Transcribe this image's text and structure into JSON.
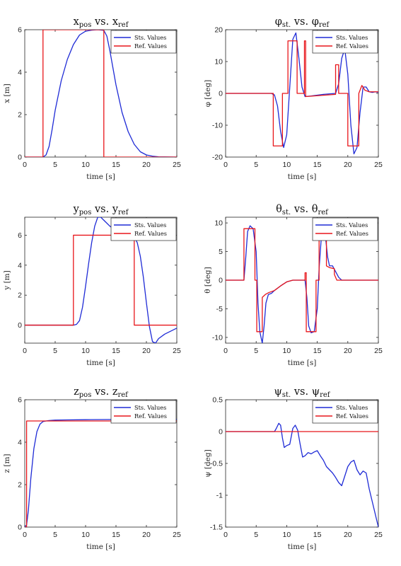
{
  "colors": {
    "states": "#1f2bd6",
    "reference": "#e8161b"
  },
  "chart_data": [
    {
      "type": "line",
      "title": "x_pos vs. x_ref",
      "title_main_1": "x",
      "title_sub_1": "pos",
      "title_join": " vs. ",
      "title_main_2": "x",
      "title_sub_2": "ref",
      "xlabel": "time [s]",
      "ylabel": "x [m]",
      "xlim": [
        0,
        25
      ],
      "ylim": [
        0,
        6
      ],
      "xticks": [
        0,
        5,
        10,
        15,
        20,
        25
      ],
      "yticks": [
        0,
        2,
        4,
        6
      ],
      "legend_position": "top-right",
      "series": [
        {
          "name": "Sts. Values",
          "color": "#1f2bd6",
          "x": [
            0,
            3,
            3.5,
            4,
            4.5,
            5,
            6,
            7,
            8,
            9,
            10,
            11,
            12,
            13,
            13.5,
            14,
            15,
            16,
            17,
            18,
            19,
            20,
            21,
            22,
            25
          ],
          "y": [
            0,
            0,
            0.1,
            0.5,
            1.3,
            2.2,
            3.6,
            4.6,
            5.3,
            5.75,
            5.93,
            5.98,
            6,
            5.97,
            5.7,
            5.0,
            3.4,
            2.1,
            1.2,
            0.6,
            0.25,
            0.1,
            0.04,
            0.01,
            0
          ]
        },
        {
          "name": "Ref. Values",
          "color": "#e8161b",
          "x": [
            0,
            3,
            3,
            13,
            13,
            25
          ],
          "y": [
            0,
            0,
            6,
            6,
            0,
            0
          ]
        }
      ]
    },
    {
      "type": "line",
      "title": "φ_st. vs. φ_ref",
      "title_main_1": "φ",
      "title_sub_1": "st.",
      "title_join": " vs. ",
      "title_main_2": "φ",
      "title_sub_2": "ref",
      "xlabel": "time [s]",
      "ylabel": "φ [deg]",
      "xlim": [
        0,
        25
      ],
      "ylim": [
        -20,
        20
      ],
      "xticks": [
        0,
        5,
        10,
        15,
        20,
        25
      ],
      "yticks": [
        -20,
        -10,
        0,
        10,
        20
      ],
      "legend_position": "top-right",
      "series": [
        {
          "name": "Sts. Values",
          "color": "#1f2bd6",
          "x": [
            0,
            7.5,
            8,
            8.5,
            9,
            9.5,
            10,
            10.5,
            11,
            11.5,
            12,
            12.5,
            13,
            14,
            16,
            18,
            18.5,
            19,
            19.5,
            20,
            20.5,
            21,
            21.5,
            22,
            22.5,
            23,
            23.5,
            24,
            24.5,
            25
          ],
          "y": [
            0,
            0,
            -0.5,
            -4,
            -12,
            -17,
            -13,
            2,
            17,
            19,
            11,
            2,
            -1,
            -0.8,
            -0.3,
            0,
            3,
            11,
            14,
            6,
            -10,
            -19,
            -17,
            -6,
            2,
            2,
            0.5,
            0.3,
            0.5,
            0.3
          ]
        },
        {
          "name": "Ref. Values",
          "color": "#e8161b",
          "x": [
            0,
            7.8,
            7.8,
            9.3,
            9.3,
            10.2,
            10.2,
            11.7,
            11.7,
            12.9,
            12.9,
            13.1,
            13.1,
            18,
            18,
            18.5,
            18.5,
            20,
            20,
            21.8,
            21.8,
            22.3,
            22.8,
            23.5,
            25
          ],
          "y": [
            0,
            0,
            -16.5,
            -16.5,
            0,
            0,
            16.5,
            16.5,
            0,
            0,
            16.5,
            16.5,
            -1,
            -0.3,
            9,
            9,
            0,
            0,
            -16.5,
            -16.5,
            0,
            2.5,
            1,
            0.5,
            0.5
          ]
        }
      ]
    },
    {
      "type": "line",
      "title": "y_pos vs. y_ref",
      "title_main_1": "y",
      "title_sub_1": "pos",
      "title_join": " vs. ",
      "title_main_2": "y",
      "title_sub_2": "ref",
      "xlabel": "time [s]",
      "ylabel": "y [m]",
      "xlim": [
        0,
        25
      ],
      "ylim": [
        -1.2,
        7.2
      ],
      "xticks": [
        0,
        5,
        10,
        15,
        20,
        25
      ],
      "yticks": [
        0,
        2,
        4,
        6
      ],
      "legend_position": "top-right",
      "series": [
        {
          "name": "Sts. Values",
          "color": "#1f2bd6",
          "x": [
            0,
            8,
            8.5,
            9,
            9.5,
            10,
            10.5,
            11,
            11.5,
            12,
            12.5,
            13,
            14,
            15,
            16,
            17,
            18,
            18.5,
            19,
            19.5,
            20,
            20.5,
            21,
            21.5,
            22,
            23,
            24,
            25
          ],
          "y": [
            0,
            0,
            0.05,
            0.3,
            1.2,
            2.6,
            4.1,
            5.5,
            6.6,
            7.2,
            7.2,
            7.0,
            6.6,
            6.3,
            6.1,
            6.05,
            5.9,
            5.5,
            4.6,
            3.2,
            1.5,
            -0.1,
            -1.1,
            -1.2,
            -0.9,
            -0.6,
            -0.4,
            -0.2
          ]
        },
        {
          "name": "Ref. Values",
          "color": "#e8161b",
          "x": [
            0,
            8,
            8,
            18,
            18,
            25
          ],
          "y": [
            0,
            0,
            6,
            6,
            0,
            0
          ]
        }
      ]
    },
    {
      "type": "line",
      "title": "θ_st. vs. θ_ref",
      "title_main_1": "θ",
      "title_sub_1": "st.",
      "title_join": " vs. ",
      "title_main_2": "θ",
      "title_sub_2": "ref",
      "xlabel": "time [s]",
      "ylabel": "θ [deg]",
      "xlim": [
        0,
        25
      ],
      "ylim": [
        -11,
        11
      ],
      "xticks": [
        0,
        5,
        10,
        15,
        20,
        25
      ],
      "yticks": [
        -10,
        -5,
        0,
        5,
        10
      ],
      "legend_position": "top-right",
      "series": [
        {
          "name": "Sts. Values",
          "color": "#1f2bd6",
          "x": [
            0,
            3,
            3.3,
            3.6,
            4,
            4.5,
            5,
            5.3,
            5.6,
            6,
            6.3,
            6.6,
            7,
            7.5,
            8,
            9,
            10,
            11,
            12,
            13,
            13.3,
            13.6,
            14,
            14.5,
            15,
            15.3,
            15.7,
            16,
            16.3,
            16.7,
            17,
            17.5,
            18,
            18.5,
            19,
            20,
            22,
            25
          ],
          "y": [
            0,
            0,
            4,
            8.5,
            9.5,
            9,
            5,
            -4,
            -9,
            -11,
            -8,
            -4,
            -2.5,
            -2.3,
            -1.8,
            -1,
            -0.3,
            0,
            0,
            0,
            -3,
            -8,
            -9.2,
            -9,
            -5,
            2,
            8,
            10.5,
            8,
            4,
            2.5,
            2.5,
            1.5,
            0.5,
            0,
            0,
            0,
            0
          ]
        },
        {
          "name": "Ref. Values",
          "color": "#e8161b",
          "x": [
            0,
            3,
            3,
            4.8,
            4.8,
            5.1,
            5.1,
            6,
            6,
            6.5,
            7,
            7.5,
            8,
            9,
            10,
            11,
            12,
            13,
            13,
            13.2,
            13.2,
            14.8,
            14.8,
            15.3,
            15.3,
            16.5,
            16.5,
            17,
            17.8,
            17.8,
            18.2,
            20,
            25
          ],
          "y": [
            0,
            0,
            9,
            9,
            0,
            0,
            -9,
            -9,
            -3,
            -2.5,
            -2.2,
            -2,
            -1.8,
            -1,
            -0.3,
            0,
            0,
            0,
            1.3,
            1.3,
            -9,
            -9,
            0,
            0,
            9,
            9,
            2.5,
            2.2,
            2,
            1,
            0,
            0,
            0
          ]
        }
      ]
    },
    {
      "type": "line",
      "title": "z_pos vs. z_ref",
      "title_main_1": "z",
      "title_sub_1": "pos",
      "title_join": " vs. ",
      "title_main_2": "z",
      "title_sub_2": "ref",
      "xlabel": "time [s]",
      "ylabel": "z [m]",
      "xlim": [
        0,
        25
      ],
      "ylim": [
        0,
        6
      ],
      "xticks": [
        0,
        5,
        10,
        15,
        20,
        25
      ],
      "yticks": [
        0,
        2,
        4,
        6
      ],
      "legend_position": "top-right",
      "series": [
        {
          "name": "Sts. Values",
          "color": "#1f2bd6",
          "x": [
            0,
            0.3,
            0.6,
            1,
            1.5,
            2,
            2.5,
            3,
            3.5,
            4,
            5,
            7,
            10,
            15,
            20,
            25
          ],
          "y": [
            0,
            0.1,
            0.8,
            2.3,
            3.7,
            4.5,
            4.85,
            4.97,
            5.0,
            5.02,
            5.04,
            5.05,
            5.06,
            5.07,
            5.08,
            5.08
          ]
        },
        {
          "name": "Ref. Values",
          "color": "#e8161b",
          "x": [
            0,
            0.3,
            0.3,
            25
          ],
          "y": [
            0,
            0,
            5,
            5
          ]
        }
      ]
    },
    {
      "type": "line",
      "title": "ψ_st. vs. ψ_ref",
      "title_main_1": "ψ",
      "title_sub_1": "st.",
      "title_join": " vs. ",
      "title_main_2": "ψ",
      "title_sub_2": "ref",
      "xlabel": "time [s]",
      "ylabel": "ψ [deg]",
      "xlim": [
        0,
        25
      ],
      "ylim": [
        -1.5,
        0.5
      ],
      "xticks": [
        0,
        5,
        10,
        15,
        20,
        25
      ],
      "yticks": [
        -1.5,
        -1,
        -0.5,
        0,
        0.5
      ],
      "legend_position": "top-right",
      "series": [
        {
          "name": "Sts. Values",
          "color": "#1f2bd6",
          "x": [
            0,
            8,
            8.3,
            8.7,
            9,
            9.3,
            9.6,
            10,
            10.5,
            11,
            11.4,
            11.8,
            12.2,
            12.6,
            13,
            13.5,
            14,
            14.5,
            15,
            15.5,
            16,
            16.5,
            17,
            17.5,
            18,
            18.5,
            19,
            19.5,
            20,
            20.5,
            21,
            21.5,
            22,
            22.5,
            23,
            23.5,
            24,
            24.5,
            25
          ],
          "y": [
            0,
            0,
            0.05,
            0.13,
            0.1,
            -0.1,
            -0.25,
            -0.22,
            -0.2,
            0.05,
            0.1,
            0.02,
            -0.2,
            -0.4,
            -0.38,
            -0.33,
            -0.35,
            -0.32,
            -0.3,
            -0.38,
            -0.45,
            -0.55,
            -0.6,
            -0.65,
            -0.72,
            -0.8,
            -0.85,
            -0.7,
            -0.55,
            -0.48,
            -0.45,
            -0.6,
            -0.68,
            -0.62,
            -0.65,
            -0.9,
            -1.1,
            -1.3,
            -1.5
          ]
        },
        {
          "name": "Ref. Values",
          "color": "#e8161b",
          "x": [
            0,
            25
          ],
          "y": [
            0,
            0
          ]
        }
      ]
    }
  ]
}
